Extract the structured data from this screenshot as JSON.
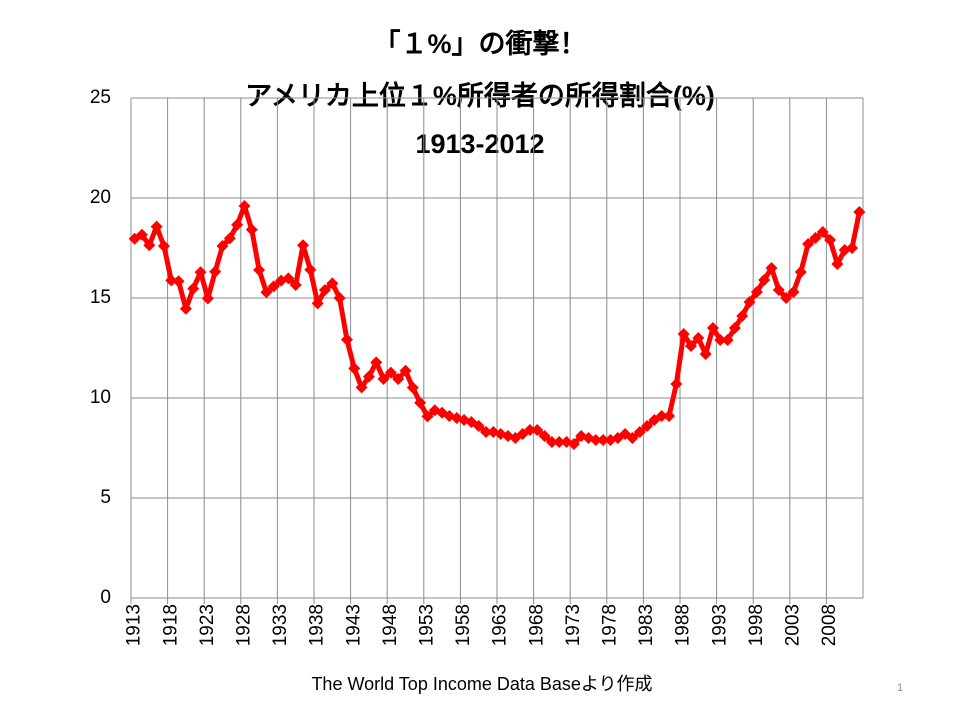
{
  "chart_data": {
    "type": "line",
    "title": [
      "「１%」の衝撃！",
      "アメリカ上位１%所得者の所得割合(%)",
      "1913-2012"
    ],
    "source": "The World Top Income Data Baseより作成",
    "page_number": "1",
    "x": [
      1913,
      1914,
      1915,
      1916,
      1917,
      1918,
      1919,
      1920,
      1921,
      1922,
      1923,
      1924,
      1925,
      1926,
      1927,
      1928,
      1929,
      1930,
      1931,
      1932,
      1933,
      1934,
      1935,
      1936,
      1937,
      1938,
      1939,
      1940,
      1941,
      1942,
      1943,
      1944,
      1945,
      1946,
      1947,
      1948,
      1949,
      1950,
      1951,
      1952,
      1953,
      1954,
      1955,
      1956,
      1957,
      1958,
      1959,
      1960,
      1961,
      1962,
      1963,
      1964,
      1965,
      1966,
      1967,
      1968,
      1969,
      1970,
      1971,
      1972,
      1973,
      1974,
      1975,
      1976,
      1977,
      1978,
      1979,
      1980,
      1981,
      1982,
      1983,
      1984,
      1985,
      1986,
      1987,
      1988,
      1989,
      1990,
      1991,
      1992,
      1993,
      1994,
      1995,
      1996,
      1997,
      1998,
      1999,
      2000,
      2001,
      2002,
      2003,
      2004,
      2005,
      2006,
      2007,
      2008,
      2009,
      2010,
      2011,
      2012
    ],
    "series": [
      {
        "name": "Top 1%",
        "color": "#ff0000",
        "values": [
          17.96,
          18.16,
          17.64,
          18.57,
          17.6,
          15.88,
          15.84,
          14.46,
          15.47,
          16.29,
          14.98,
          16.32,
          17.6,
          17.98,
          18.66,
          19.6,
          18.42,
          16.4,
          15.29,
          15.58,
          15.87,
          15.98,
          15.65,
          17.64,
          16.41,
          14.73,
          15.4,
          15.73,
          15.0,
          12.92,
          11.48,
          10.53,
          11.07,
          11.78,
          10.95,
          11.27,
          10.95,
          11.36,
          10.52,
          9.76,
          9.08,
          9.39,
          9.26,
          9.1,
          9.0,
          8.9,
          8.8,
          8.6,
          8.3,
          8.3,
          8.2,
          8.1,
          8.0,
          8.2,
          8.4,
          8.4,
          8.1,
          7.8,
          7.8,
          7.8,
          7.7,
          8.1,
          8.0,
          7.9,
          7.9,
          7.9,
          8.0,
          8.2,
          8.0,
          8.3,
          8.6,
          8.9,
          9.1,
          9.1,
          10.7,
          13.2,
          12.6,
          13.0,
          12.2,
          13.5,
          12.9,
          12.9,
          13.5,
          14.1,
          14.8,
          15.3,
          15.9,
          16.5,
          15.4,
          15.0,
          15.3,
          16.3,
          17.7,
          18.0,
          18.3,
          17.9,
          16.7,
          17.4,
          17.5,
          19.3
        ]
      }
    ],
    "xlim": [
      1912.5,
      2012.5
    ],
    "xticks": [
      1913,
      1918,
      1923,
      1928,
      1933,
      1938,
      1943,
      1948,
      1953,
      1958,
      1963,
      1968,
      1973,
      1978,
      1983,
      1988,
      1993,
      1998,
      2003,
      2008
    ],
    "ylim": [
      0,
      25
    ],
    "yticks": [
      0,
      5,
      10,
      15,
      20,
      25
    ],
    "grid": true
  }
}
